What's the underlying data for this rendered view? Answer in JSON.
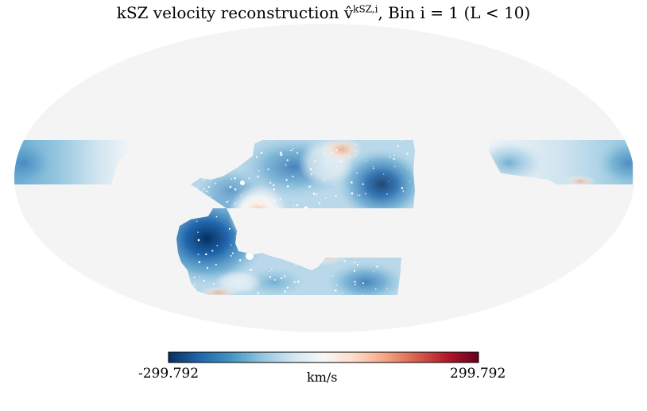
{
  "title": {
    "prefix": "kSZ velocity reconstruction ",
    "symbol": "v̂",
    "superscript": "kSZ,i",
    "suffix": ", Bin i = 1 (L < 10)"
  },
  "colorbar": {
    "min_label": "-299.792",
    "max_label": "299.792",
    "unit": "km/s",
    "min": -299.792,
    "max": 299.792,
    "colormap": "RdBu_r",
    "colors": [
      "#053061",
      "#2166ac",
      "#4393c3",
      "#92c5de",
      "#d1e5f0",
      "#f7f7f7",
      "#fddbc7",
      "#f4a582",
      "#d6604d",
      "#b2182b",
      "#67001f"
    ]
  },
  "map": {
    "projection": "mollweide",
    "masked_color": "#f4f4f4"
  }
}
